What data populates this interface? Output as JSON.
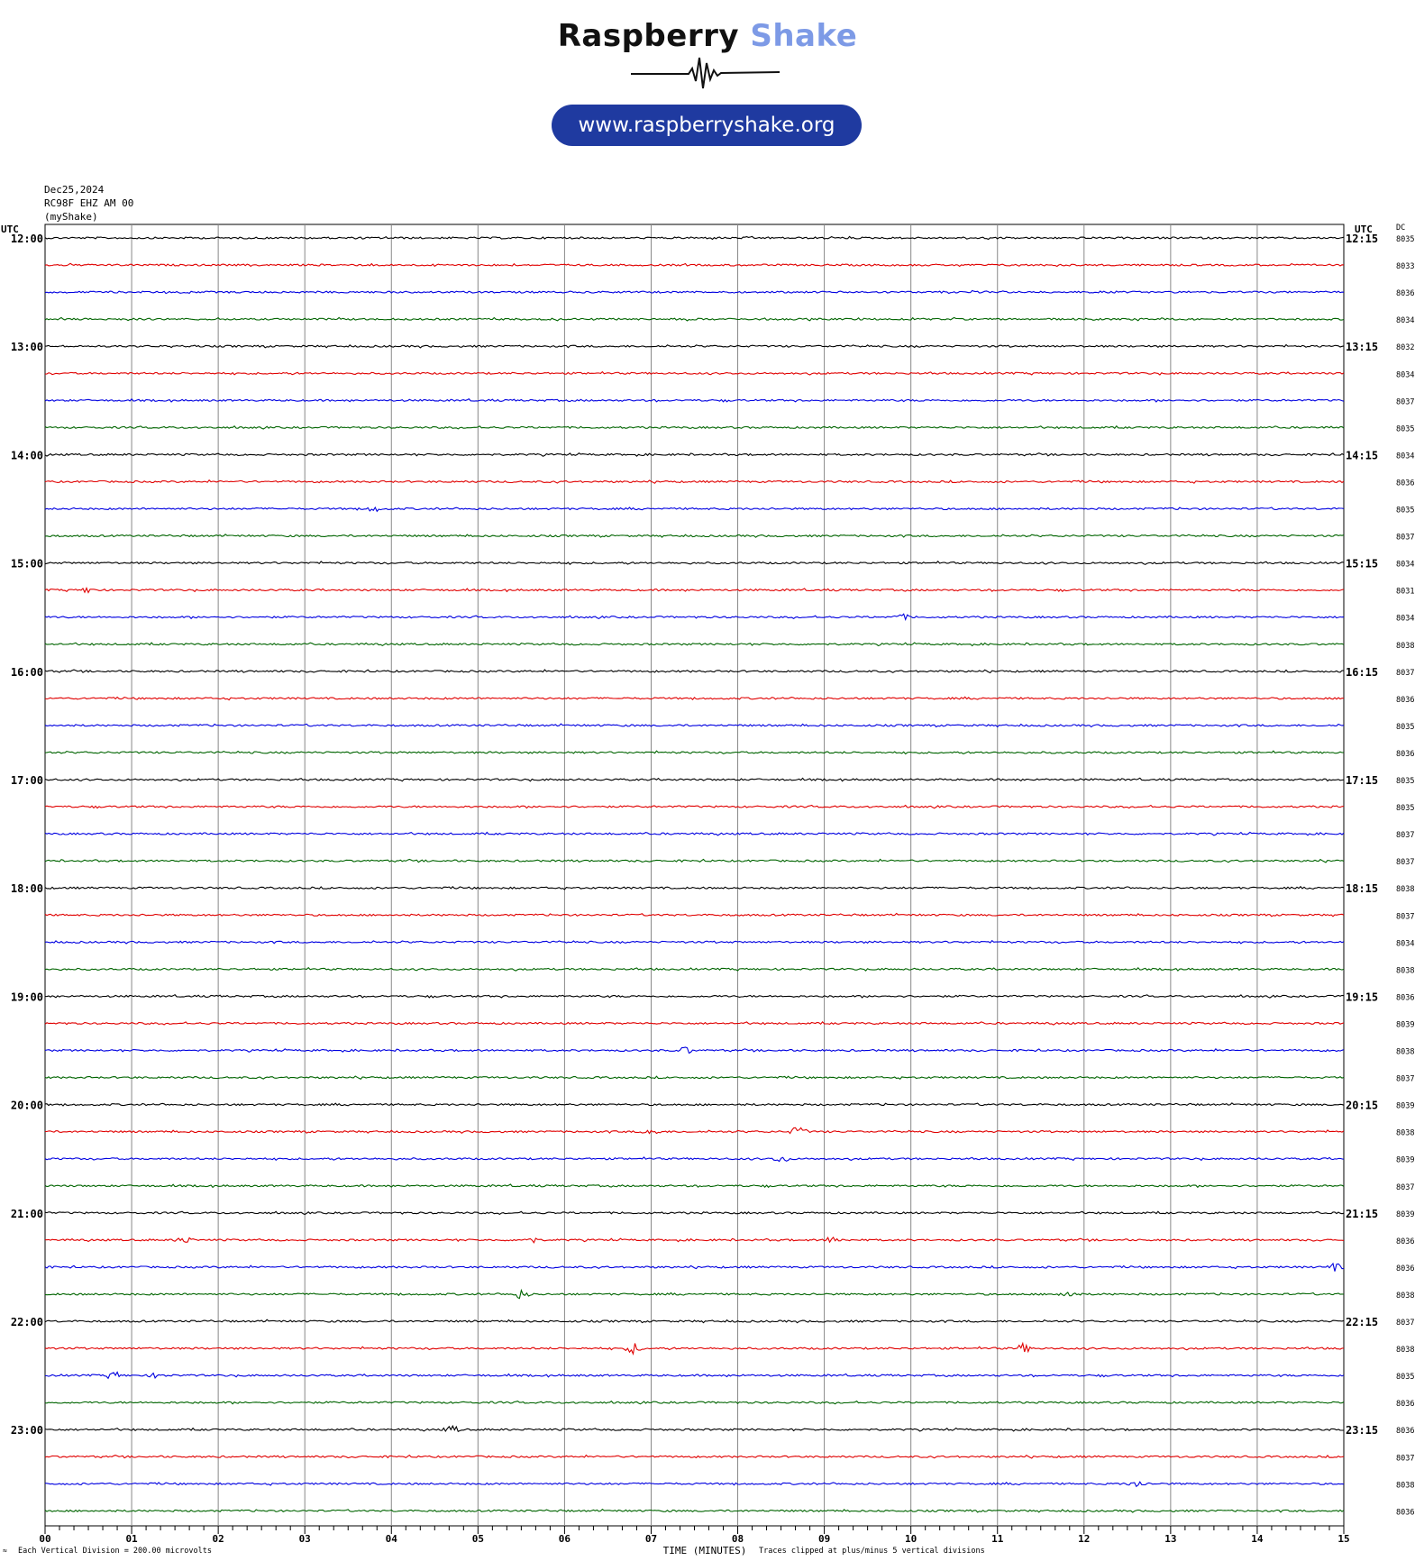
{
  "logo": {
    "word1": "Raspberry",
    "word2": " Shake",
    "url": "www.raspberryshake.org"
  },
  "header": {
    "date": "Dec25,2024",
    "station": "RC98F EHZ AM 00",
    "source": "(myShake)"
  },
  "footer": {
    "division": "Each Vertical Division =  200.00 microvolts",
    "xlabel": "TIME (MINUTES)",
    "clip": "Traces clipped at plus/minus 5 vertical divisions"
  },
  "chart_data": {
    "type": "line",
    "title": "",
    "xlabel": "TIME (MINUTES)",
    "left_axis_label": "UTC",
    "right_axis_label": "UTC",
    "dc_label": "DC",
    "x_ticks": [
      "00",
      "01",
      "02",
      "03",
      "04",
      "05",
      "06",
      "07",
      "08",
      "09",
      "10",
      "11",
      "12",
      "13",
      "14",
      "15"
    ],
    "xlim": [
      0,
      15
    ],
    "row_minutes": 15,
    "left_hour_labels": [
      "12:00",
      "13:00",
      "14:00",
      "15:00",
      "16:00",
      "17:00",
      "18:00",
      "19:00",
      "20:00",
      "21:00",
      "22:00",
      "23:00"
    ],
    "right_hour_labels": [
      "12:15",
      "13:15",
      "14:15",
      "15:15",
      "16:15",
      "17:15",
      "18:15",
      "19:15",
      "20:15",
      "21:15",
      "22:15",
      "23:15"
    ],
    "trace_colors": [
      "#000000",
      "#e00000",
      "#0000e0",
      "#006400"
    ],
    "dc_values": [
      "8035",
      "8033",
      "8036",
      "8034",
      "8032",
      "8034",
      "8037",
      "8035",
      "8034",
      "8036",
      "8035",
      "8037",
      "8034",
      "8031",
      "8034",
      "8038",
      "8037",
      "8036",
      "8035",
      "8036",
      "8035",
      "8035",
      "8037",
      "8037",
      "8038",
      "8037",
      "8034",
      "8038",
      "8036",
      "8039",
      "8038",
      "8037",
      "8039",
      "8038",
      "8039",
      "8037",
      "8039",
      "8036",
      "8036",
      "8038",
      "8037",
      "8038",
      "8035",
      "8036",
      "8036",
      "8037",
      "8038",
      "8036"
    ],
    "events": [
      {
        "row": 33,
        "minute": 8.7,
        "amp": 6
      },
      {
        "row": 33,
        "minute": 7.0,
        "amp": 4
      },
      {
        "row": 34,
        "minute": 8.5,
        "amp": 4
      },
      {
        "row": 30,
        "minute": 7.4,
        "amp": 4
      },
      {
        "row": 37,
        "minute": 1.6,
        "amp": 4
      },
      {
        "row": 37,
        "minute": 5.6,
        "amp": 4
      },
      {
        "row": 37,
        "minute": 9.1,
        "amp": 4
      },
      {
        "row": 38,
        "minute": 14.9,
        "amp": 4
      },
      {
        "row": 39,
        "minute": 5.5,
        "amp": 5
      },
      {
        "row": 39,
        "minute": 11.8,
        "amp": 4
      },
      {
        "row": 41,
        "minute": 6.8,
        "amp": 6
      },
      {
        "row": 41,
        "minute": 11.3,
        "amp": 5
      },
      {
        "row": 42,
        "minute": 0.8,
        "amp": 4
      },
      {
        "row": 42,
        "minute": 1.3,
        "amp": 3
      },
      {
        "row": 44,
        "minute": 4.7,
        "amp": 4
      },
      {
        "row": 46,
        "minute": 12.6,
        "amp": 4
      },
      {
        "row": 10,
        "minute": 3.8,
        "amp": 3
      },
      {
        "row": 13,
        "minute": 0.5,
        "amp": 3
      },
      {
        "row": 14,
        "minute": 9.9,
        "amp": 3
      }
    ],
    "grid": true,
    "legend": "none"
  }
}
